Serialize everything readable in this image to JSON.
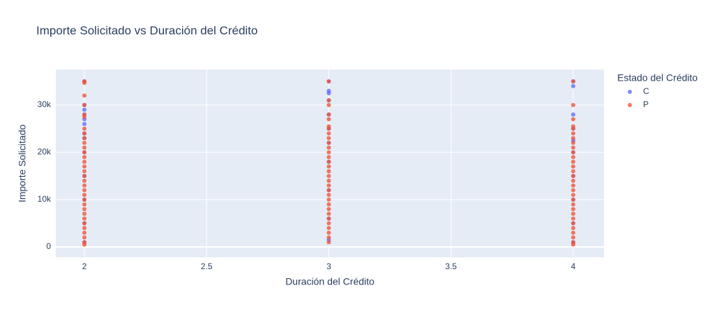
{
  "chart_data": {
    "type": "scatter",
    "title": "Importe Solicitado vs Duración del Crédito",
    "x_label": "Duración del Crédito",
    "y_label": "Importe Solicitado",
    "legend_title": "Estado del Crédito",
    "xlim": [
      1.883,
      4.126
    ],
    "ylim": [
      -2200,
      37500
    ],
    "xticks": [
      2,
      2.5,
      3,
      3.5,
      4
    ],
    "yticks": [
      {
        "value": 0,
        "label": "0"
      },
      {
        "value": 10000,
        "label": "10k"
      },
      {
        "value": 20000,
        "label": "20k"
      },
      {
        "value": 30000,
        "label": "30k"
      }
    ],
    "grid": true,
    "legend_position": "right",
    "series": [
      {
        "name": "C",
        "color": "#636efa",
        "x": [
          2,
          2,
          2,
          2,
          2,
          2,
          2,
          2,
          2,
          2,
          2,
          2,
          2,
          3,
          3,
          3,
          3,
          3,
          3,
          3,
          3,
          3,
          3,
          3,
          4,
          4,
          4,
          4,
          4,
          4,
          4,
          4,
          4,
          4
        ],
        "values": [
          35000,
          30000,
          29000,
          28000,
          27000,
          26000,
          24000,
          23000,
          20000,
          15000,
          10000,
          5000,
          1000,
          35000,
          33000,
          32500,
          31000,
          28000,
          25000,
          22000,
          18000,
          12000,
          6000,
          1500,
          35000,
          34000,
          28000,
          25000,
          22500,
          20000,
          15000,
          10000,
          5000,
          1000
        ]
      },
      {
        "name": "P",
        "color": "#ef553b",
        "x": [
          2,
          2,
          2,
          2,
          2,
          2,
          2,
          2,
          2,
          2,
          2,
          2,
          2,
          2,
          2,
          2,
          2,
          2,
          2,
          2,
          2,
          2,
          2,
          2,
          2,
          2,
          2,
          2,
          2,
          2,
          2,
          2,
          3,
          3,
          3,
          3,
          3,
          3,
          3,
          3,
          3,
          3,
          3,
          3,
          3,
          3,
          3,
          3,
          3,
          3,
          3,
          3,
          3,
          3,
          3,
          3,
          3,
          3,
          3,
          3,
          3,
          3,
          3,
          4,
          4,
          4,
          4,
          4,
          4,
          4,
          4,
          4,
          4,
          4,
          4,
          4,
          4,
          4,
          4,
          4,
          4,
          4,
          4,
          4,
          4,
          4,
          4,
          4,
          4,
          4,
          4,
          4,
          4
        ],
        "values": [
          35000,
          34700,
          32000,
          30000,
          28000,
          27500,
          25000,
          24000,
          23000,
          22000,
          21000,
          20000,
          19000,
          18000,
          17000,
          16000,
          15000,
          14000,
          13000,
          12000,
          11000,
          10000,
          9000,
          8000,
          7000,
          6000,
          5000,
          4000,
          3000,
          2000,
          1000,
          500,
          35000,
          31000,
          30000,
          28000,
          27000,
          25500,
          25000,
          24000,
          23000,
          22000,
          21000,
          20000,
          19000,
          18000,
          17000,
          16000,
          15000,
          14000,
          13000,
          12000,
          11000,
          10000,
          9000,
          8000,
          7000,
          6000,
          5000,
          4000,
          3000,
          2000,
          1000,
          35000,
          30000,
          27000,
          25500,
          25000,
          24000,
          23000,
          22000,
          21000,
          20000,
          19000,
          18000,
          17000,
          16000,
          15000,
          14000,
          13000,
          12000,
          11000,
          10000,
          9000,
          8000,
          7000,
          6000,
          5000,
          4000,
          3000,
          2000,
          1000,
          500
        ]
      }
    ]
  }
}
